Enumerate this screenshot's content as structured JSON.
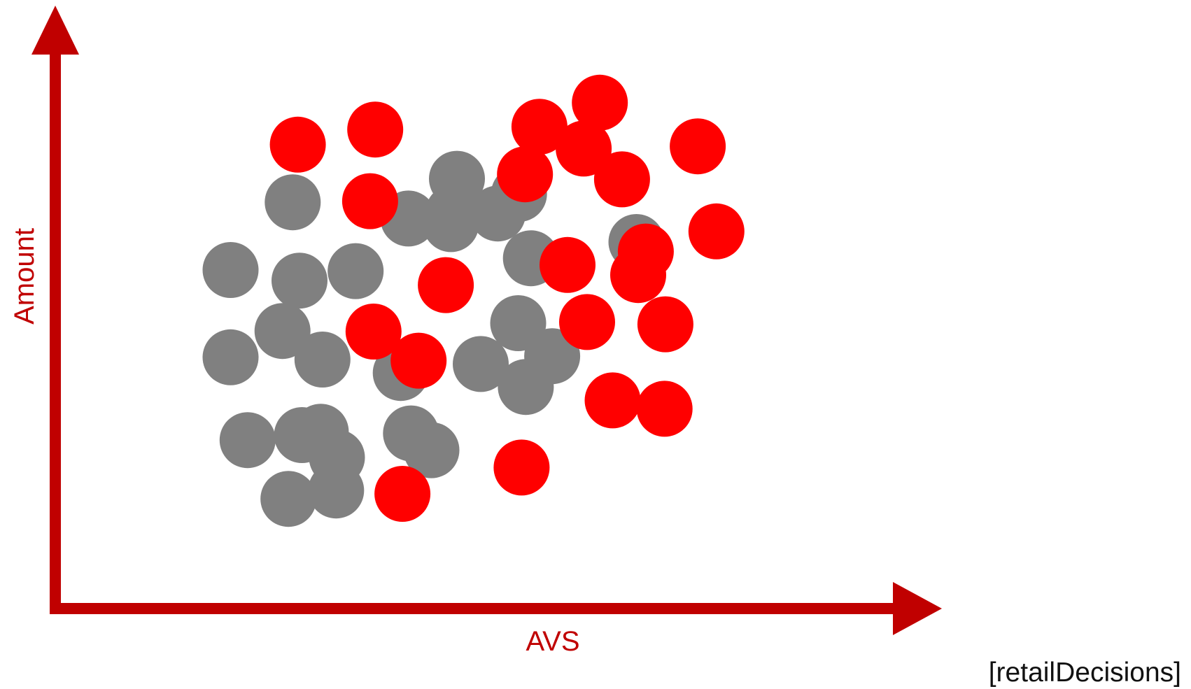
{
  "chart_data": {
    "type": "scatter",
    "xlabel": "AVS",
    "ylabel": "Amount",
    "xlim": [
      0,
      100
    ],
    "ylim": [
      0,
      100
    ],
    "grid": false,
    "axis_color": "#c00000",
    "series": [
      {
        "color": "#808080",
        "points": [
          [
            27.9,
            72.6
          ],
          [
            20.6,
            60.5
          ],
          [
            28.7,
            58.6
          ],
          [
            35.3,
            60.3
          ],
          [
            26.7,
            49.6
          ],
          [
            20.6,
            44.9
          ],
          [
            31.4,
            44.5
          ],
          [
            22.6,
            30.1
          ],
          [
            29.0,
            31.0
          ],
          [
            31.2,
            31.6
          ],
          [
            33.1,
            27.0
          ],
          [
            27.4,
            19.6
          ],
          [
            33.0,
            21.1
          ],
          [
            41.8,
            31.3
          ],
          [
            44.2,
            28.3
          ],
          [
            41.5,
            69.7
          ],
          [
            47.2,
            76.8
          ],
          [
            46.8,
            70.8
          ],
          [
            46.5,
            68.7
          ],
          [
            52.0,
            70.6
          ],
          [
            54.5,
            74.1
          ],
          [
            55.9,
            62.6
          ],
          [
            54.4,
            51.0
          ],
          [
            50.0,
            43.7
          ],
          [
            55.3,
            39.6
          ],
          [
            58.4,
            45.1
          ],
          [
            68.3,
            65.5
          ],
          [
            40.6,
            42.1
          ]
        ]
      },
      {
        "color": "#ff0000",
        "points": [
          [
            28.5,
            82.9
          ],
          [
            37.6,
            85.6
          ],
          [
            37.0,
            72.8
          ],
          [
            56.9,
            86.1
          ],
          [
            55.2,
            77.6
          ],
          [
            64.0,
            90.4
          ],
          [
            62.1,
            82.2
          ],
          [
            66.6,
            76.7
          ],
          [
            75.5,
            82.6
          ],
          [
            77.7,
            67.4
          ],
          [
            69.4,
            63.8
          ],
          [
            60.2,
            61.4
          ],
          [
            68.5,
            59.6
          ],
          [
            45.9,
            57.8
          ],
          [
            37.4,
            49.5
          ],
          [
            42.7,
            44.3
          ],
          [
            62.5,
            51.2
          ],
          [
            71.7,
            50.8
          ],
          [
            65.5,
            37.2
          ],
          [
            71.6,
            35.7
          ],
          [
            54.8,
            25.2
          ],
          [
            40.8,
            20.5
          ]
        ]
      }
    ]
  },
  "credit": "[retailDecisions]"
}
